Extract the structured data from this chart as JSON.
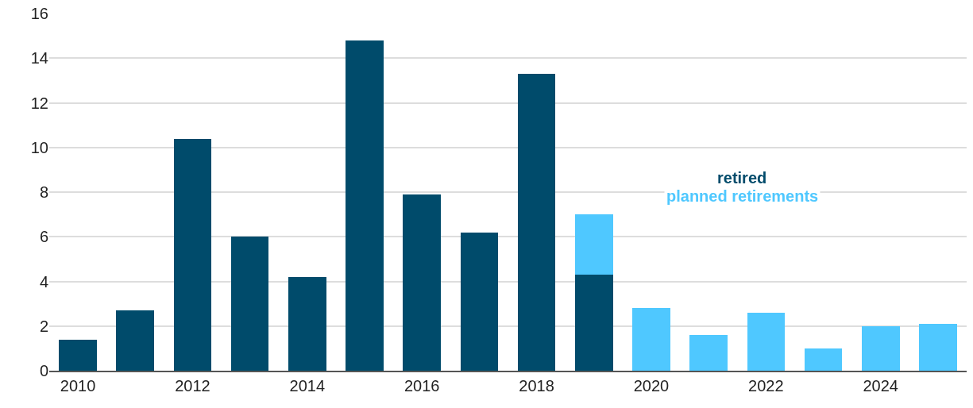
{
  "chart_data": {
    "type": "bar",
    "stacked": true,
    "categories": [
      "2010",
      null,
      "2012",
      null,
      "2014",
      null,
      "2016",
      null,
      "2018",
      null,
      "2020",
      null,
      "2022",
      null,
      "2024",
      null
    ],
    "series": [
      {
        "name": "retired",
        "color": "#004b6b",
        "values": [
          1.4,
          2.7,
          10.4,
          6.0,
          4.2,
          14.8,
          7.9,
          6.2,
          13.3,
          4.3,
          null,
          null,
          null,
          null,
          null,
          null
        ]
      },
      {
        "name": "planned retirements",
        "color": "#4fc8ff",
        "values": [
          null,
          null,
          null,
          null,
          null,
          null,
          null,
          null,
          null,
          2.7,
          2.8,
          1.6,
          2.6,
          1.0,
          2.0,
          2.1
        ]
      }
    ],
    "ylim": [
      0,
      16
    ],
    "yticks": [
      0,
      2,
      4,
      6,
      8,
      10,
      12,
      14,
      16
    ],
    "grid": "y"
  }
}
